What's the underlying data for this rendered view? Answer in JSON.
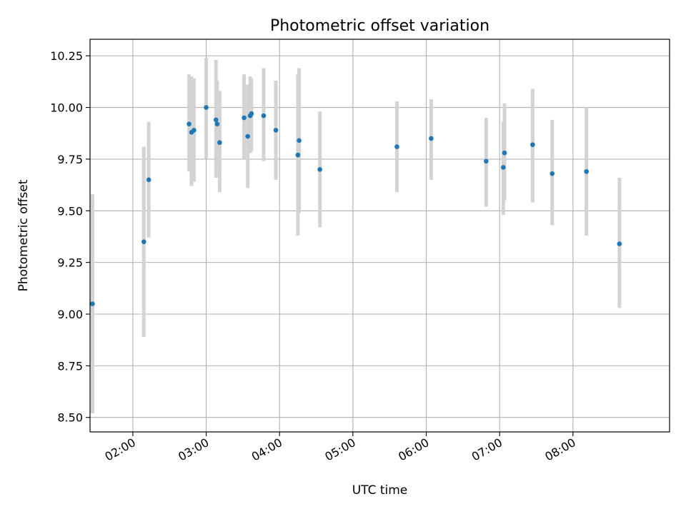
{
  "chart_data": {
    "type": "scatter",
    "title": "Photometric offset variation",
    "xlabel": "UTC time",
    "ylabel": "Photometric offset",
    "x_ticks": [
      "02:00",
      "03:00",
      "04:00",
      "05:00",
      "06:00",
      "07:00",
      "08:00"
    ],
    "y_ticks": [
      "8.50",
      "8.75",
      "9.00",
      "9.25",
      "9.50",
      "9.75",
      "10.00",
      "10.25"
    ],
    "xlim": [
      "01:25",
      "09:19"
    ],
    "ylim": [
      8.43,
      10.33
    ],
    "grid": true,
    "colors": {
      "point": "#1f77b4",
      "errorbar": "#d3d3d3",
      "grid": "#b0b0b0"
    },
    "points": [
      {
        "t": "01:27",
        "y": 9.05,
        "lo": 8.52,
        "hi": 9.58
      },
      {
        "t": "02:09",
        "y": 9.35,
        "lo": 8.89,
        "hi": 9.81
      },
      {
        "t": "02:13",
        "y": 9.65,
        "lo": 9.37,
        "hi": 9.93
      },
      {
        "t": "02:46",
        "y": 9.92,
        "lo": 9.69,
        "hi": 10.16
      },
      {
        "t": "02:48",
        "y": 9.88,
        "lo": 9.62,
        "hi": 10.15
      },
      {
        "t": "02:50",
        "y": 9.89,
        "lo": 9.64,
        "hi": 10.14
      },
      {
        "t": "03:00",
        "y": 10.0,
        "lo": 9.75,
        "hi": 10.24
      },
      {
        "t": "03:08",
        "y": 9.94,
        "lo": 9.66,
        "hi": 10.23
      },
      {
        "t": "03:09",
        "y": 9.92,
        "lo": 9.71,
        "hi": 10.13
      },
      {
        "t": "03:11",
        "y": 9.83,
        "lo": 9.59,
        "hi": 10.08
      },
      {
        "t": "03:31",
        "y": 9.95,
        "lo": 9.75,
        "hi": 10.16
      },
      {
        "t": "03:34",
        "y": 9.86,
        "lo": 9.61,
        "hi": 10.11
      },
      {
        "t": "03:36",
        "y": 9.96,
        "lo": 9.78,
        "hi": 10.15
      },
      {
        "t": "03:37",
        "y": 9.97,
        "lo": 9.79,
        "hi": 10.14
      },
      {
        "t": "03:47",
        "y": 9.96,
        "lo": 9.74,
        "hi": 10.19
      },
      {
        "t": "03:57",
        "y": 9.89,
        "lo": 9.65,
        "hi": 10.13
      },
      {
        "t": "04:15",
        "y": 9.77,
        "lo": 9.38,
        "hi": 10.16
      },
      {
        "t": "04:16",
        "y": 9.84,
        "lo": 9.49,
        "hi": 10.19
      },
      {
        "t": "04:33",
        "y": 9.7,
        "lo": 9.42,
        "hi": 9.98
      },
      {
        "t": "05:36",
        "y": 9.81,
        "lo": 9.59,
        "hi": 10.03
      },
      {
        "t": "06:04",
        "y": 9.85,
        "lo": 9.65,
        "hi": 10.04
      },
      {
        "t": "06:49",
        "y": 9.74,
        "lo": 9.52,
        "hi": 9.95
      },
      {
        "t": "07:03",
        "y": 9.71,
        "lo": 9.48,
        "hi": 9.93
      },
      {
        "t": "07:04",
        "y": 9.78,
        "lo": 9.55,
        "hi": 10.02
      },
      {
        "t": "07:27",
        "y": 9.82,
        "lo": 9.54,
        "hi": 10.09
      },
      {
        "t": "07:43",
        "y": 9.68,
        "lo": 9.43,
        "hi": 9.94
      },
      {
        "t": "08:11",
        "y": 9.69,
        "lo": 9.38,
        "hi": 10.0
      },
      {
        "t": "08:38",
        "y": 9.34,
        "lo": 9.03,
        "hi": 9.66
      }
    ]
  }
}
